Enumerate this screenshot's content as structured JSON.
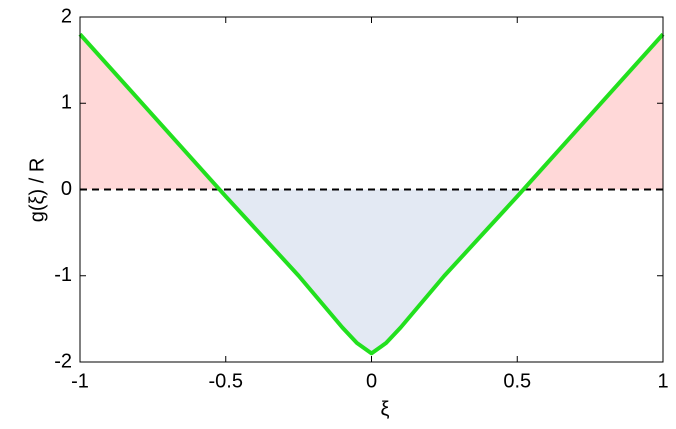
{
  "chart_data": {
    "type": "line",
    "xlabel": "ξ",
    "ylabel": "g(ξ) / R",
    "x": [
      -1,
      -0.75,
      -0.5,
      -0.25,
      -0.1,
      -0.05,
      0,
      0.05,
      0.1,
      0.25,
      0.5,
      0.75,
      1
    ],
    "series": [
      {
        "color": "#22e01e",
        "values": [
          1.8,
          0.86,
          -0.08,
          -1.0,
          -1.6,
          -1.78,
          -1.9,
          -1.78,
          -1.6,
          -1.0,
          -0.08,
          0.86,
          1.8
        ]
      }
    ],
    "positive_fill": "#ffd8d8",
    "negative_fill": "#e3e9f3",
    "reference_line": 0,
    "xlim": [
      -1,
      1
    ],
    "xticks": [
      -1,
      -0.5,
      0,
      0.5,
      1
    ],
    "ylim": [
      -2,
      2
    ],
    "yticks": [
      -2,
      -1,
      0,
      1,
      2
    ]
  }
}
